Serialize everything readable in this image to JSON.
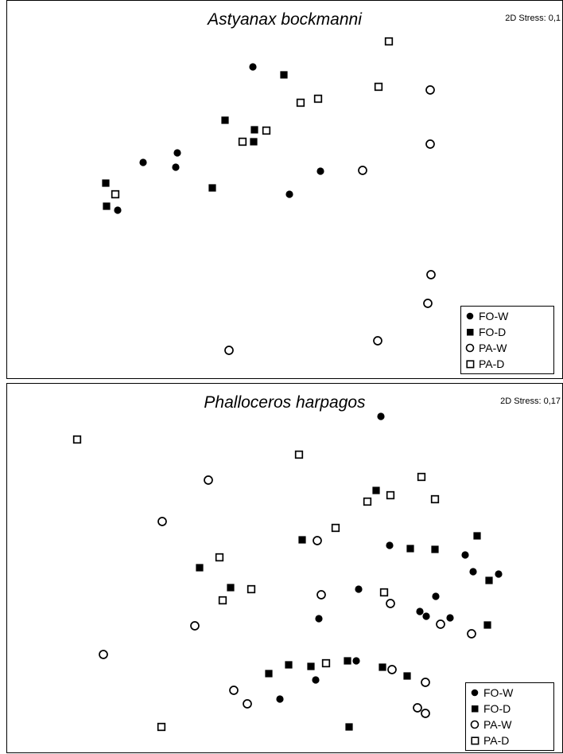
{
  "chart_data": [
    {
      "type": "scatter",
      "title": "Astyanax bockmanni",
      "stress_label": "2D Stress: 0,1",
      "legend": [
        "FO-W",
        "FO-D",
        "PA-W",
        "PA-D"
      ],
      "series": [
        {
          "name": "FO-W",
          "marker": "filled-circle",
          "points": [
            [
              309,
              83
            ],
            [
              171,
              203
            ],
            [
              214,
              191
            ],
            [
              212,
              209
            ],
            [
              394,
              214
            ],
            [
              355,
              243
            ],
            [
              139,
              263
            ]
          ]
        },
        {
          "name": "FO-D",
          "marker": "filled-square",
          "points": [
            [
              348,
              93
            ],
            [
              274,
              150
            ],
            [
              311,
              162
            ],
            [
              310,
              177
            ],
            [
              258,
              235
            ],
            [
              124,
              229
            ],
            [
              125,
              258
            ]
          ]
        },
        {
          "name": "PA-W",
          "marker": "open-circle",
          "points": [
            [
              532,
              112
            ],
            [
              532,
              180
            ],
            [
              447,
              213
            ],
            [
              533,
              344
            ],
            [
              529,
              380
            ],
            [
              466,
              427
            ],
            [
              279,
              439
            ]
          ]
        },
        {
          "name": "PA-D",
          "marker": "open-square",
          "points": [
            [
              480,
              51
            ],
            [
              467,
              108
            ],
            [
              391,
              123
            ],
            [
              369,
              128
            ],
            [
              326,
              163
            ],
            [
              296,
              177
            ],
            [
              136,
              243
            ]
          ]
        }
      ]
    },
    {
      "type": "scatter",
      "title": "Phalloceros harpagos",
      "stress_label": "2D Stress: 0,17",
      "legend": [
        "FO-W",
        "FO-D",
        "PA-W",
        "PA-D"
      ],
      "series": [
        {
          "name": "FO-W",
          "marker": "filled-circle",
          "points": [
            [
              470,
              41
            ],
            [
              481,
              203
            ],
            [
              576,
              215
            ],
            [
              586,
              236
            ],
            [
              618,
              239
            ],
            [
              442,
              258
            ],
            [
              539,
              267
            ],
            [
              519,
              286
            ],
            [
              527,
              292
            ],
            [
              557,
              294
            ],
            [
              392,
              295
            ],
            [
              439,
              348
            ],
            [
              388,
              372
            ],
            [
              343,
              396
            ]
          ]
        },
        {
          "name": "FO-D",
          "marker": "filled-square",
          "points": [
            [
              464,
              134
            ],
            [
              591,
              191
            ],
            [
              371,
              196
            ],
            [
              507,
              207
            ],
            [
              538,
              208
            ],
            [
              242,
              231
            ],
            [
              606,
              247
            ],
            [
              281,
              256
            ],
            [
              604,
              303
            ],
            [
              354,
              353
            ],
            [
              382,
              355
            ],
            [
              428,
              348
            ],
            [
              472,
              356
            ],
            [
              503,
              367
            ],
            [
              329,
              364
            ],
            [
              430,
              431
            ]
          ]
        },
        {
          "name": "PA-W",
          "marker": "open-circle",
          "points": [
            [
              253,
              121
            ],
            [
              195,
              173
            ],
            [
              390,
              197
            ],
            [
              395,
              265
            ],
            [
              482,
              276
            ],
            [
              236,
              304
            ],
            [
              545,
              302
            ],
            [
              584,
              314
            ],
            [
              121,
              340
            ],
            [
              484,
              359
            ],
            [
              526,
              375
            ],
            [
              285,
              385
            ],
            [
              302,
              402
            ],
            [
              516,
              407
            ],
            [
              526,
              414
            ]
          ]
        },
        {
          "name": "PA-D",
          "marker": "open-square",
          "points": [
            [
              88,
              70
            ],
            [
              367,
              89
            ],
            [
              521,
              117
            ],
            [
              482,
              140
            ],
            [
              453,
              148
            ],
            [
              538,
              145
            ],
            [
              413,
              181
            ],
            [
              267,
              218
            ],
            [
              307,
              258
            ],
            [
              474,
              262
            ],
            [
              271,
              272
            ],
            [
              401,
              351
            ],
            [
              194,
              431
            ]
          ]
        }
      ]
    }
  ]
}
